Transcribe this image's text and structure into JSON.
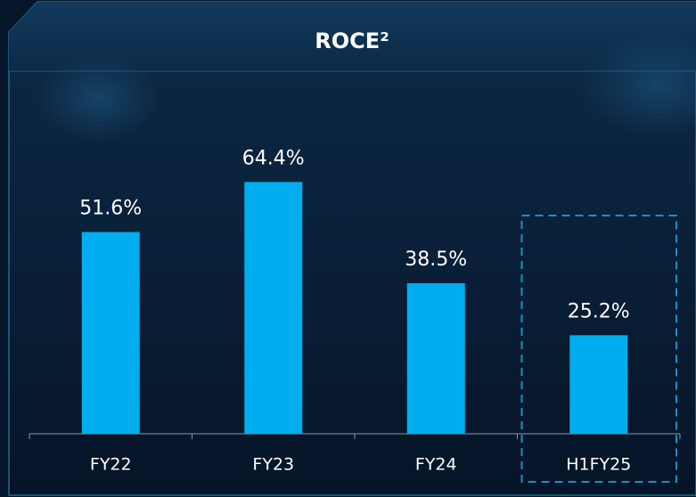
{
  "chart_data": {
    "type": "bar",
    "title": "ROCE²",
    "categories": [
      "FY22",
      "FY23",
      "FY24",
      "H1FY25"
    ],
    "values": [
      51.6,
      64.4,
      38.5,
      25.2
    ],
    "value_labels": [
      "51.6%",
      "64.4%",
      "38.5%",
      "25.2%"
    ],
    "color": "#00aeef"
  }
}
